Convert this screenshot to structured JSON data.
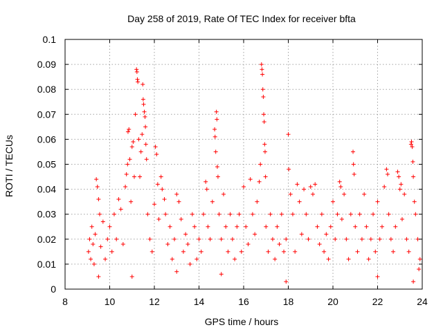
{
  "chart_data": {
    "type": "scatter",
    "title": "Day 258 of 2019, Rate Of TEC Index for receiver bfta",
    "xlabel": "GPS time / hours",
    "ylabel": "ROTI / TECUs",
    "xlim": [
      8,
      24
    ],
    "ylim": [
      0,
      0.1
    ],
    "xticks": [
      8,
      10,
      12,
      14,
      16,
      18,
      20,
      22,
      24
    ],
    "xtick_labels": [
      "8",
      "10",
      "12",
      "14",
      "16",
      "18",
      "20",
      "22",
      "24"
    ],
    "yticks": [
      0,
      0.01,
      0.02,
      0.03,
      0.04,
      0.05,
      0.06,
      0.07,
      0.08,
      0.09,
      0.1
    ],
    "ytick_labels": [
      "0",
      "0.01",
      "0.02",
      "0.03",
      "0.04",
      "0.05",
      "0.06",
      "0.07",
      "0.08",
      "0.09",
      "0.1"
    ],
    "grid": true,
    "marker": "+",
    "color": "#ff0000",
    "series": [
      {
        "name": "ROTI",
        "points": [
          [
            9.05,
            0.015
          ],
          [
            9.1,
            0.02
          ],
          [
            9.15,
            0.012
          ],
          [
            9.2,
            0.025
          ],
          [
            9.25,
            0.018
          ],
          [
            9.3,
            0.01
          ],
          [
            9.35,
            0.022
          ],
          [
            9.4,
            0.044
          ],
          [
            9.45,
            0.041
          ],
          [
            9.5,
            0.036
          ],
          [
            9.55,
            0.03
          ],
          [
            9.6,
            0.017
          ],
          [
            9.7,
            0.027
          ],
          [
            9.8,
            0.012
          ],
          [
            9.9,
            0.02
          ],
          [
            10.0,
            0.025
          ],
          [
            10.1,
            0.015
          ],
          [
            10.2,
            0.03
          ],
          [
            10.3,
            0.02
          ],
          [
            10.4,
            0.036
          ],
          [
            10.5,
            0.032
          ],
          [
            10.6,
            0.018
          ],
          [
            10.7,
            0.041
          ],
          [
            10.75,
            0.046
          ],
          [
            10.8,
            0.05
          ],
          [
            10.82,
            0.063
          ],
          [
            10.86,
            0.064
          ],
          [
            10.9,
            0.052
          ],
          [
            10.95,
            0.035
          ],
          [
            11.0,
            0.057
          ],
          [
            11.05,
            0.059
          ],
          [
            11.1,
            0.045
          ],
          [
            11.15,
            0.07
          ],
          [
            11.2,
            0.088
          ],
          [
            11.22,
            0.087
          ],
          [
            11.24,
            0.084
          ],
          [
            11.26,
            0.083
          ],
          [
            11.3,
            0.06
          ],
          [
            11.35,
            0.045
          ],
          [
            11.4,
            0.055
          ],
          [
            11.45,
            0.062
          ],
          [
            11.5,
            0.076
          ],
          [
            11.52,
            0.074
          ],
          [
            11.55,
            0.071
          ],
          [
            11.58,
            0.069
          ],
          [
            11.6,
            0.065
          ],
          [
            11.62,
            0.058
          ],
          [
            11.65,
            0.052
          ],
          [
            11.48,
            0.082
          ],
          [
            11.7,
            0.03
          ],
          [
            11.8,
            0.02
          ],
          [
            11.9,
            0.015
          ],
          [
            12.0,
            0.034
          ],
          [
            12.05,
            0.057
          ],
          [
            12.1,
            0.054
          ],
          [
            12.15,
            0.042
          ],
          [
            12.2,
            0.028
          ],
          [
            12.3,
            0.045
          ],
          [
            12.35,
            0.04
          ],
          [
            12.45,
            0.036
          ],
          [
            12.5,
            0.03
          ],
          [
            12.6,
            0.018
          ],
          [
            12.7,
            0.025
          ],
          [
            12.8,
            0.012
          ],
          [
            12.9,
            0.02
          ],
          [
            13.0,
            0.038
          ],
          [
            13.1,
            0.035
          ],
          [
            13.2,
            0.028
          ],
          [
            13.3,
            0.015
          ],
          [
            13.4,
            0.022
          ],
          [
            13.5,
            0.018
          ],
          [
            13.6,
            0.01
          ],
          [
            13.7,
            0.03
          ],
          [
            13.8,
            0.025
          ],
          [
            13.9,
            0.012
          ],
          [
            14.0,
            0.02
          ],
          [
            14.1,
            0.015
          ],
          [
            14.2,
            0.03
          ],
          [
            14.3,
            0.043
          ],
          [
            14.35,
            0.04
          ],
          [
            14.4,
            0.025
          ],
          [
            14.5,
            0.02
          ],
          [
            14.6,
            0.035
          ],
          [
            14.7,
            0.064
          ],
          [
            14.72,
            0.061
          ],
          [
            14.75,
            0.055
          ],
          [
            14.78,
            0.071
          ],
          [
            14.8,
            0.068
          ],
          [
            14.82,
            0.049
          ],
          [
            14.85,
            0.045
          ],
          [
            14.9,
            0.03
          ],
          [
            15.0,
            0.02
          ],
          [
            15.1,
            0.038
          ],
          [
            15.2,
            0.025
          ],
          [
            15.3,
            0.015
          ],
          [
            15.4,
            0.03
          ],
          [
            15.5,
            0.02
          ],
          [
            15.6,
            0.012
          ],
          [
            15.7,
            0.025
          ],
          [
            15.8,
            0.03
          ],
          [
            15.9,
            0.015
          ],
          [
            16.0,
            0.041
          ],
          [
            16.1,
            0.025
          ],
          [
            16.2,
            0.018
          ],
          [
            16.3,
            0.044
          ],
          [
            16.4,
            0.03
          ],
          [
            16.5,
            0.022
          ],
          [
            16.6,
            0.035
          ],
          [
            16.7,
            0.043
          ],
          [
            16.75,
            0.05
          ],
          [
            16.8,
            0.09
          ],
          [
            16.82,
            0.088
          ],
          [
            16.84,
            0.086
          ],
          [
            16.86,
            0.08
          ],
          [
            16.88,
            0.077
          ],
          [
            16.9,
            0.07
          ],
          [
            16.92,
            0.067
          ],
          [
            16.94,
            0.058
          ],
          [
            16.96,
            0.055
          ],
          [
            16.98,
            0.045
          ],
          [
            17.0,
            0.025
          ],
          [
            17.1,
            0.015
          ],
          [
            17.2,
            0.03
          ],
          [
            17.3,
            0.02
          ],
          [
            17.4,
            0.012
          ],
          [
            17.5,
            0.025
          ],
          [
            17.6,
            0.018
          ],
          [
            17.7,
            0.03
          ],
          [
            17.8,
            0.015
          ],
          [
            17.9,
            0.02
          ],
          [
            18.0,
            0.062
          ],
          [
            18.02,
            0.048
          ],
          [
            18.1,
            0.038
          ],
          [
            18.2,
            0.03
          ],
          [
            18.3,
            0.015
          ],
          [
            18.4,
            0.042
          ],
          [
            18.5,
            0.035
          ],
          [
            18.6,
            0.022
          ],
          [
            18.7,
            0.04
          ],
          [
            18.8,
            0.03
          ],
          [
            18.9,
            0.02
          ],
          [
            19.0,
            0.041
          ],
          [
            19.1,
            0.038
          ],
          [
            19.2,
            0.042
          ],
          [
            19.3,
            0.025
          ],
          [
            19.4,
            0.018
          ],
          [
            19.5,
            0.03
          ],
          [
            19.6,
            0.015
          ],
          [
            19.7,
            0.022
          ],
          [
            19.8,
            0.012
          ],
          [
            19.9,
            0.025
          ],
          [
            20.0,
            0.035
          ],
          [
            20.1,
            0.02
          ],
          [
            20.2,
            0.03
          ],
          [
            20.3,
            0.043
          ],
          [
            20.35,
            0.041
          ],
          [
            20.4,
            0.028
          ],
          [
            20.5,
            0.038
          ],
          [
            20.6,
            0.02
          ],
          [
            20.7,
            0.012
          ],
          [
            20.8,
            0.03
          ],
          [
            20.9,
            0.055
          ],
          [
            20.92,
            0.05
          ],
          [
            20.95,
            0.046
          ],
          [
            21.0,
            0.025
          ],
          [
            21.1,
            0.015
          ],
          [
            21.2,
            0.03
          ],
          [
            21.3,
            0.02
          ],
          [
            21.4,
            0.038
          ],
          [
            21.5,
            0.025
          ],
          [
            21.6,
            0.012
          ],
          [
            21.7,
            0.02
          ],
          [
            21.8,
            0.03
          ],
          [
            21.9,
            0.015
          ],
          [
            22.0,
            0.035
          ],
          [
            22.1,
            0.02
          ],
          [
            22.2,
            0.025
          ],
          [
            22.3,
            0.041
          ],
          [
            22.4,
            0.048
          ],
          [
            22.45,
            0.046
          ],
          [
            22.5,
            0.03
          ],
          [
            22.6,
            0.02
          ],
          [
            22.7,
            0.015
          ],
          [
            22.8,
            0.025
          ],
          [
            22.9,
            0.047
          ],
          [
            22.95,
            0.045
          ],
          [
            23.0,
            0.04
          ],
          [
            23.05,
            0.042
          ],
          [
            23.1,
            0.028
          ],
          [
            23.2,
            0.038
          ],
          [
            23.3,
            0.02
          ],
          [
            23.4,
            0.015
          ],
          [
            23.5,
            0.058
          ],
          [
            23.52,
            0.059
          ],
          [
            23.55,
            0.057
          ],
          [
            23.58,
            0.051
          ],
          [
            23.6,
            0.045
          ],
          [
            23.65,
            0.035
          ],
          [
            23.7,
            0.03
          ],
          [
            23.8,
            0.02
          ],
          [
            23.85,
            0.008
          ],
          [
            23.9,
            0.012
          ],
          [
            23.6,
            0.003
          ],
          [
            22.0,
            0.005
          ],
          [
            17.9,
            0.003
          ],
          [
            15.0,
            0.006
          ],
          [
            13.0,
            0.007
          ],
          [
            11.0,
            0.005
          ],
          [
            9.5,
            0.005
          ]
        ]
      }
    ]
  }
}
